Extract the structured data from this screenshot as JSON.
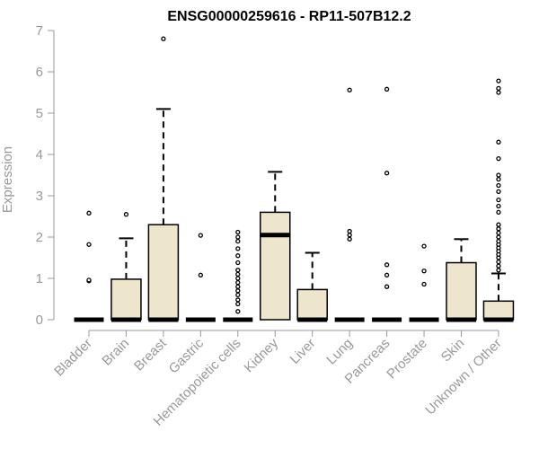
{
  "chart_data": {
    "type": "boxplot",
    "title": "ENSG00000259616 - RP11-507B12.2",
    "xlabel": "",
    "ylabel": "Expression",
    "ylim": [
      0,
      7
    ],
    "yticks": [
      0,
      1,
      2,
      3,
      4,
      5,
      6,
      7
    ],
    "grid": false,
    "legend": "none",
    "colors": {
      "box_fill": "#ede6cc",
      "box_stroke": "#000000",
      "axis": "#999999"
    },
    "categories": [
      "Bladder",
      "Brain",
      "Breast",
      "Gastric",
      "Hematopoietic cells",
      "Kidney",
      "Liver",
      "Lung",
      "Pancreas",
      "Prostate",
      "Skin",
      "Unknown / Other"
    ],
    "boxes": [
      {
        "category": "Bladder",
        "q1": 0,
        "median": 0,
        "q3": 0,
        "whisker_low": 0,
        "whisker_high": 0,
        "outliers": [
          0.94,
          0.96,
          1.82,
          2.58
        ]
      },
      {
        "category": "Brain",
        "q1": 0,
        "median": 0,
        "q3": 0.98,
        "whisker_low": 0,
        "whisker_high": 1.97,
        "outliers": [
          2.55
        ]
      },
      {
        "category": "Breast",
        "q1": 0,
        "median": 0,
        "q3": 2.3,
        "whisker_low": 0,
        "whisker_high": 5.1,
        "outliers": [
          6.8
        ]
      },
      {
        "category": "Gastric",
        "q1": 0,
        "median": 0,
        "q3": 0,
        "whisker_low": 0,
        "whisker_high": 0,
        "outliers": [
          1.08,
          2.04
        ]
      },
      {
        "category": "Hematopoietic cells",
        "q1": 0,
        "median": 0,
        "q3": 0,
        "whisker_low": 0,
        "whisker_high": 0,
        "outliers": [
          0.2,
          0.38,
          0.48,
          0.6,
          0.7,
          0.8,
          0.9,
          1.0,
          1.1,
          1.2,
          1.38,
          1.55,
          1.72,
          1.9,
          2.0,
          2.12
        ]
      },
      {
        "category": "Kidney",
        "q1": 0,
        "median": 2.05,
        "q3": 2.6,
        "whisker_low": 0,
        "whisker_high": 3.58,
        "outliers": []
      },
      {
        "category": "Liver",
        "q1": 0,
        "median": 0,
        "q3": 0.73,
        "whisker_low": 0,
        "whisker_high": 1.62,
        "outliers": []
      },
      {
        "category": "Lung",
        "q1": 0,
        "median": 0,
        "q3": 0,
        "whisker_low": 0,
        "whisker_high": 0,
        "outliers": [
          1.95,
          2.05,
          2.14,
          5.56
        ]
      },
      {
        "category": "Pancreas",
        "q1": 0,
        "median": 0,
        "q3": 0,
        "whisker_low": 0,
        "whisker_high": 0,
        "outliers": [
          0.8,
          1.08,
          1.33,
          3.55,
          5.58
        ]
      },
      {
        "category": "Prostate",
        "q1": 0,
        "median": 0,
        "q3": 0,
        "whisker_low": 0,
        "whisker_high": 0,
        "outliers": [
          0.86,
          1.18,
          1.78
        ]
      },
      {
        "category": "Skin",
        "q1": 0,
        "median": 0,
        "q3": 1.38,
        "whisker_low": 0,
        "whisker_high": 1.95,
        "outliers": []
      },
      {
        "category": "Unknown / Other",
        "q1": 0,
        "median": 0,
        "q3": 0.45,
        "whisker_low": 0,
        "whisker_high": 1.12,
        "outliers": [
          1.2,
          1.3,
          1.4,
          1.5,
          1.58,
          1.66,
          1.74,
          1.82,
          1.9,
          2.0,
          2.1,
          2.2,
          2.3,
          2.6,
          2.75,
          2.9,
          3.1,
          3.25,
          3.4,
          3.5,
          3.9,
          4.3,
          5.5,
          5.6,
          5.78
        ]
      }
    ]
  }
}
